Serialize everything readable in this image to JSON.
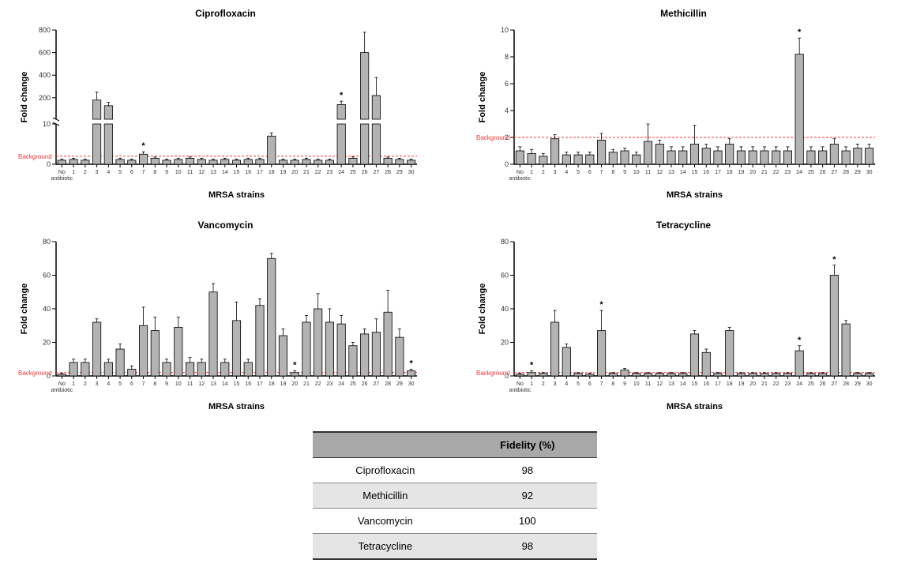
{
  "figure": {
    "background_color": "#ffffff",
    "bar_color": "#b3b3b3",
    "bar_stroke": "#000000",
    "error_color": "#000000",
    "background_line_color": "#ff3333",
    "background_label": "Background",
    "background_label_color": "#ff3333",
    "font_family": "Arial",
    "xlabel": "MRSA strains",
    "ylabel": "Fold change",
    "categories_top_label": "No\nantibiotic",
    "categories": [
      "No antibiotic",
      "1",
      "2",
      "3",
      "4",
      "5",
      "6",
      "7",
      "8",
      "9",
      "10",
      "11",
      "12",
      "13",
      "14",
      "15",
      "16",
      "17",
      "18",
      "19",
      "20",
      "21",
      "22",
      "23",
      "24",
      "25",
      "26",
      "27",
      "28",
      "29",
      "30"
    ]
  },
  "panels": {
    "ciprofloxacin": {
      "title": "Ciprofloxacin",
      "type": "bar_broken_y",
      "lower": {
        "ymin": 0,
        "ymax": 10,
        "ticks": [
          0,
          10
        ]
      },
      "upper": {
        "ymin": 10,
        "ymax": 800,
        "ticks": [
          200,
          400,
          600,
          800
        ]
      },
      "background_level": 2,
      "values": [
        1.0,
        1.2,
        1.0,
        180,
        130,
        1.2,
        1.0,
        2.5,
        1.5,
        1.0,
        1.2,
        1.5,
        1.2,
        1.0,
        1.2,
        1.0,
        1.2,
        1.2,
        7.0,
        1.0,
        1.0,
        1.2,
        1.0,
        1.0,
        140,
        1.5,
        600,
        220,
        1.5,
        1.2,
        1.0
      ],
      "errors": [
        0.3,
        0.3,
        0.3,
        70,
        30,
        0.3,
        0.3,
        0.6,
        0.3,
        0.3,
        0.3,
        0.3,
        0.3,
        0.3,
        0.3,
        0.3,
        0.3,
        0.3,
        0.8,
        0.3,
        0.3,
        0.3,
        0.3,
        0.3,
        30,
        0.3,
        180,
        160,
        0.3,
        0.3,
        0.3
      ],
      "stars": {
        "7": true,
        "24": true
      }
    },
    "methicillin": {
      "title": "Methicillin",
      "type": "bar",
      "ymin": 0,
      "ymax": 10,
      "ytick_step": 2,
      "background_level": 2,
      "values": [
        1.0,
        0.8,
        0.6,
        1.9,
        0.7,
        0.7,
        0.7,
        1.8,
        0.9,
        1.0,
        0.7,
        1.7,
        1.5,
        1.0,
        1.0,
        1.5,
        1.2,
        1.0,
        1.5,
        1.0,
        1.0,
        1.0,
        1.0,
        1.0,
        8.2,
        1.0,
        1.0,
        1.5,
        1.0,
        1.2,
        1.2
      ],
      "errors": [
        0.3,
        0.3,
        0.2,
        0.3,
        0.2,
        0.2,
        0.2,
        0.5,
        0.2,
        0.2,
        0.2,
        1.3,
        0.3,
        0.3,
        0.3,
        1.4,
        0.3,
        0.3,
        0.4,
        0.3,
        0.3,
        0.3,
        0.3,
        0.3,
        1.2,
        0.3,
        0.3,
        0.4,
        0.3,
        0.3,
        0.3
      ],
      "stars": {
        "24": true
      }
    },
    "vancomycin": {
      "title": "Vancomycin",
      "type": "bar",
      "ymin": 0,
      "ymax": 80,
      "ytick_step": 20,
      "background_level": 2,
      "values": [
        1.0,
        8,
        8,
        32,
        8,
        16,
        4,
        30,
        27,
        8,
        29,
        8,
        8,
        50,
        8,
        33,
        8,
        42,
        70,
        24,
        2,
        32,
        40,
        32,
        31,
        18,
        25,
        26,
        38,
        23,
        3
      ],
      "errors": [
        0.5,
        2,
        2,
        2,
        2,
        3,
        2,
        11,
        8,
        2,
        6,
        3,
        2,
        5,
        2,
        11,
        2,
        4,
        3,
        4,
        1,
        4,
        9,
        8,
        5,
        2,
        3,
        8,
        13,
        5,
        1
      ],
      "stars": {
        "20": true,
        "30": true
      }
    },
    "tetracycline": {
      "title": "Tetracycline",
      "type": "bar",
      "ymin": 0,
      "ymax": 80,
      "ytick_step": 20,
      "background_level": 2,
      "values": [
        1.0,
        2,
        1.5,
        32,
        17,
        1.5,
        1.0,
        27,
        1.5,
        3.5,
        1.5,
        1.5,
        1.5,
        1.5,
        1.5,
        25,
        14,
        1.5,
        27,
        1.5,
        1.5,
        1.5,
        1.5,
        1.5,
        15,
        1.5,
        1.5,
        60,
        31,
        1.5,
        1.5
      ],
      "errors": [
        0.5,
        1,
        0.5,
        7,
        2,
        0.5,
        0.5,
        12,
        0.5,
        1,
        0.5,
        0.5,
        0.5,
        0.5,
        0.5,
        2,
        2,
        0.5,
        2,
        0.5,
        0.5,
        0.5,
        0.5,
        0.5,
        3,
        0.5,
        0.5,
        6,
        2,
        0.5,
        0.5
      ],
      "stars": {
        "1": true,
        "7": true,
        "24": true,
        "27": true
      }
    }
  },
  "table": {
    "header_bg": "#a8a8a8",
    "zebra_bg": "#e5e5e5",
    "columns": [
      "",
      "Fidelity (%)"
    ],
    "rows": [
      [
        "Ciprofloxacin",
        "98"
      ],
      [
        "Methicillin",
        "92"
      ],
      [
        "Vancomycin",
        "100"
      ],
      [
        "Tetracycline",
        "98"
      ]
    ]
  }
}
